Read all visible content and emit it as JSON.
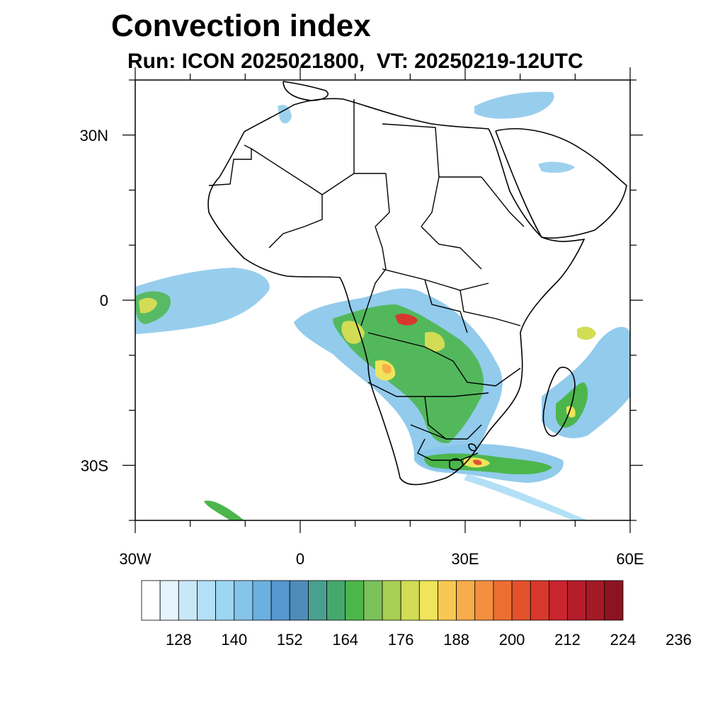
{
  "title": "Convection index",
  "subtitle": "Run: ICON 2025021800,  VT: 20250219-12UTC",
  "map": {
    "lon_range": [
      -30,
      60
    ],
    "lat_range": [
      -40,
      40
    ],
    "x_ticks": [
      {
        "lon": -30,
        "label": "30W"
      },
      {
        "lon": 0,
        "label": "0"
      },
      {
        "lon": 30,
        "label": "30E"
      },
      {
        "lon": 60,
        "label": "60E"
      }
    ],
    "y_ticks": [
      {
        "lat": 30,
        "label": "30N"
      },
      {
        "lat": 0,
        "label": "0"
      },
      {
        "lat": -30,
        "label": "30S"
      }
    ]
  },
  "colorbar": {
    "colors": [
      "#ffffff",
      "#e6f4fc",
      "#c9e8f7",
      "#b3e0f6",
      "#9dd6f3",
      "#86c5ea",
      "#6ab0e0",
      "#5597cf",
      "#4d8cb8",
      "#4aa08f",
      "#45a86d",
      "#4cb64c",
      "#7dc15a",
      "#a9cf54",
      "#d2dc55",
      "#efe45b",
      "#f8c952",
      "#f7ad49",
      "#f3903f",
      "#ec6e32",
      "#e3522b",
      "#d8382c",
      "#c8252e",
      "#b51d2b",
      "#a21a25",
      "#8c1420"
    ],
    "labels": [
      "128",
      "140",
      "152",
      "164",
      "176",
      "188",
      "200",
      "212",
      "224",
      "236"
    ]
  }
}
